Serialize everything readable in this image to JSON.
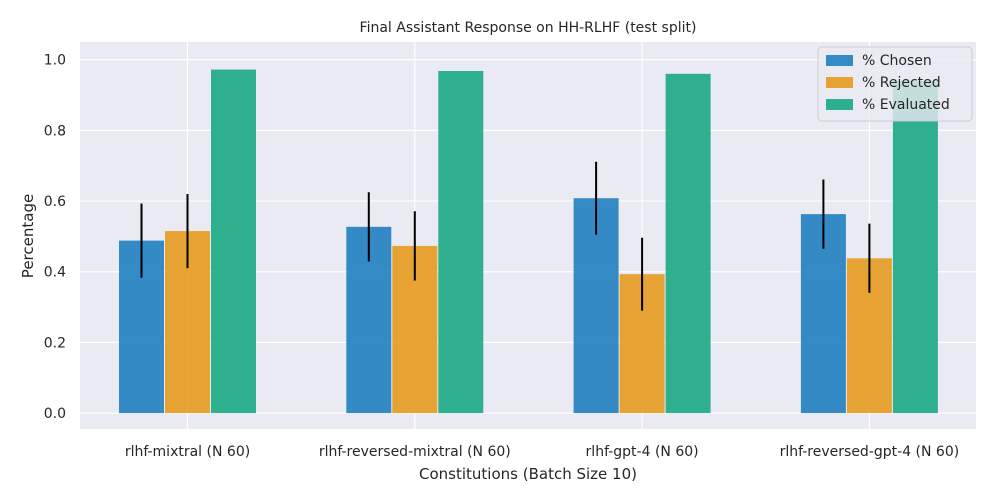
{
  "chart_data": {
    "type": "bar",
    "title": "Final Assistant Response on HH-RLHF (test split)",
    "xlabel": "Constitutions (Batch Size 10)",
    "ylabel": "Percentage",
    "categories": [
      "rlhf-mixtral (N 60)",
      "rlhf-reversed-mixtral (N 60)",
      "rlhf-gpt-4 (N 60)",
      "rlhf-reversed-gpt-4 (N 60)"
    ],
    "series": [
      {
        "name": "% Chosen",
        "color": "#1f7fc0",
        "values": [
          0.488,
          0.527,
          0.608,
          0.563
        ],
        "err": [
          0.105,
          0.098,
          0.103,
          0.098
        ]
      },
      {
        "name": "% Rejected",
        "color": "#e59b1e",
        "values": [
          0.515,
          0.473,
          0.393,
          0.438
        ],
        "err": [
          0.105,
          0.098,
          0.103,
          0.098
        ]
      },
      {
        "name": "% Evaluated",
        "color": "#1aa883",
        "values": [
          0.972,
          0.968,
          0.96,
          0.94
        ],
        "err": [
          0,
          0,
          0,
          0
        ]
      }
    ],
    "ylim": [
      -0.045,
      1.05
    ],
    "yticks": [
      "0.0",
      "0.2",
      "0.4",
      "0.6",
      "0.8",
      "1.0"
    ],
    "grid": true,
    "legend_position": "top-right"
  }
}
